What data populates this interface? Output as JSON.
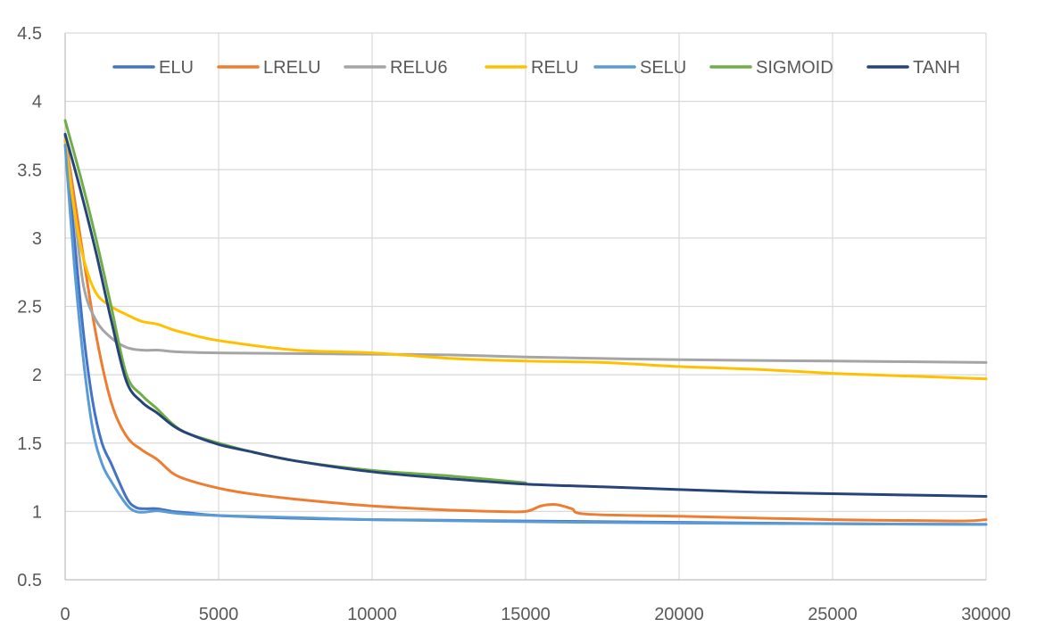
{
  "chart_data": {
    "type": "line",
    "title": "",
    "xlabel": "",
    "ylabel": "",
    "xlim": [
      0,
      30000
    ],
    "ylim": [
      0.5,
      4.5
    ],
    "x_ticks": [
      0,
      5000,
      10000,
      15000,
      20000,
      25000,
      30000
    ],
    "x_tick_labels": [
      "0",
      "5000",
      "10000",
      "15000",
      "20000",
      "25000",
      "30000"
    ],
    "y_ticks": [
      0.5,
      1,
      1.5,
      2,
      2.5,
      3,
      3.5,
      4,
      4.5
    ],
    "y_tick_labels": [
      "0.5",
      "1",
      "1.5",
      "2",
      "2.5",
      "3",
      "3.5",
      "4",
      "4.5"
    ],
    "grid": true,
    "legend_position": "top",
    "series": [
      {
        "name": "ELU",
        "color": "#4472c4",
        "x": [
          0,
          300,
          600,
          900,
          1200,
          1500,
          2000,
          2300,
          2600,
          3000,
          3500,
          4000,
          5000,
          7500,
          10000,
          15000,
          20000,
          25000,
          30000
        ],
        "y": [
          3.72,
          3.0,
          2.3,
          1.8,
          1.5,
          1.35,
          1.1,
          1.03,
          1.02,
          1.02,
          1.0,
          0.99,
          0.97,
          0.95,
          0.94,
          0.93,
          0.92,
          0.91,
          0.905
        ]
      },
      {
        "name": "LRELU",
        "color": "#ed7d31",
        "x": [
          0,
          500,
          1000,
          1500,
          2000,
          2500,
          3000,
          3500,
          4000,
          5000,
          6000,
          7500,
          10000,
          12500,
          14000,
          15000,
          15500,
          16000,
          16500,
          17000,
          20000,
          25000,
          29000,
          30000
        ],
        "y": [
          3.75,
          3.0,
          2.3,
          1.8,
          1.55,
          1.45,
          1.38,
          1.28,
          1.23,
          1.17,
          1.13,
          1.09,
          1.04,
          1.01,
          1.0,
          1.0,
          1.04,
          1.05,
          1.02,
          0.98,
          0.965,
          0.94,
          0.93,
          0.94
        ]
      },
      {
        "name": "RELU6",
        "color": "#a5a5a5",
        "x": [
          0,
          300,
          600,
          1000,
          1500,
          2000,
          2500,
          3000,
          3500,
          4000,
          5000,
          7500,
          10000,
          12500,
          15000,
          20000,
          25000,
          30000
        ],
        "y": [
          3.75,
          3.2,
          2.65,
          2.4,
          2.27,
          2.2,
          2.18,
          2.18,
          2.17,
          2.165,
          2.16,
          2.155,
          2.15,
          2.145,
          2.13,
          2.11,
          2.1,
          2.09
        ]
      },
      {
        "name": "RELU",
        "color": "#ffc000",
        "x": [
          0,
          300,
          600,
          1000,
          1500,
          2000,
          2500,
          3000,
          3500,
          4000,
          5000,
          7500,
          10000,
          12500,
          15000,
          17500,
          20000,
          22500,
          25000,
          27500,
          30000
        ],
        "y": [
          3.72,
          3.2,
          2.85,
          2.6,
          2.5,
          2.44,
          2.39,
          2.37,
          2.33,
          2.3,
          2.25,
          2.18,
          2.16,
          2.12,
          2.1,
          2.09,
          2.06,
          2.04,
          2.01,
          1.99,
          1.97
        ]
      },
      {
        "name": "SELU",
        "color": "#5b9bd5",
        "x": [
          0,
          300,
          600,
          900,
          1200,
          1500,
          2000,
          2300,
          2600,
          3000,
          3500,
          4000,
          5000,
          7500,
          10000,
          15000,
          20000,
          25000,
          30000
        ],
        "y": [
          3.68,
          2.8,
          2.1,
          1.6,
          1.35,
          1.22,
          1.05,
          1.0,
          0.995,
          1.005,
          0.99,
          0.98,
          0.97,
          0.955,
          0.94,
          0.925,
          0.915,
          0.91,
          0.905
        ]
      },
      {
        "name": "SIGMOID",
        "color": "#70ad47",
        "x": [
          0,
          500,
          1000,
          1500,
          2000,
          2500,
          3000,
          3500,
          4000,
          5000,
          6000,
          7500,
          10000,
          12500,
          15000
        ],
        "y": [
          3.86,
          3.45,
          3.0,
          2.5,
          2.0,
          1.85,
          1.75,
          1.64,
          1.57,
          1.5,
          1.44,
          1.37,
          1.3,
          1.26,
          1.21
        ]
      },
      {
        "name": "TANH",
        "color": "#264478",
        "x": [
          0,
          500,
          1000,
          1500,
          2000,
          2500,
          3000,
          3500,
          4000,
          5000,
          6000,
          7500,
          10000,
          12500,
          15000,
          17500,
          20000,
          22500,
          25000,
          27500,
          30000
        ],
        "y": [
          3.76,
          3.35,
          2.9,
          2.4,
          1.95,
          1.8,
          1.72,
          1.63,
          1.57,
          1.49,
          1.44,
          1.37,
          1.29,
          1.24,
          1.2,
          1.18,
          1.16,
          1.14,
          1.13,
          1.12,
          1.11
        ]
      }
    ]
  }
}
